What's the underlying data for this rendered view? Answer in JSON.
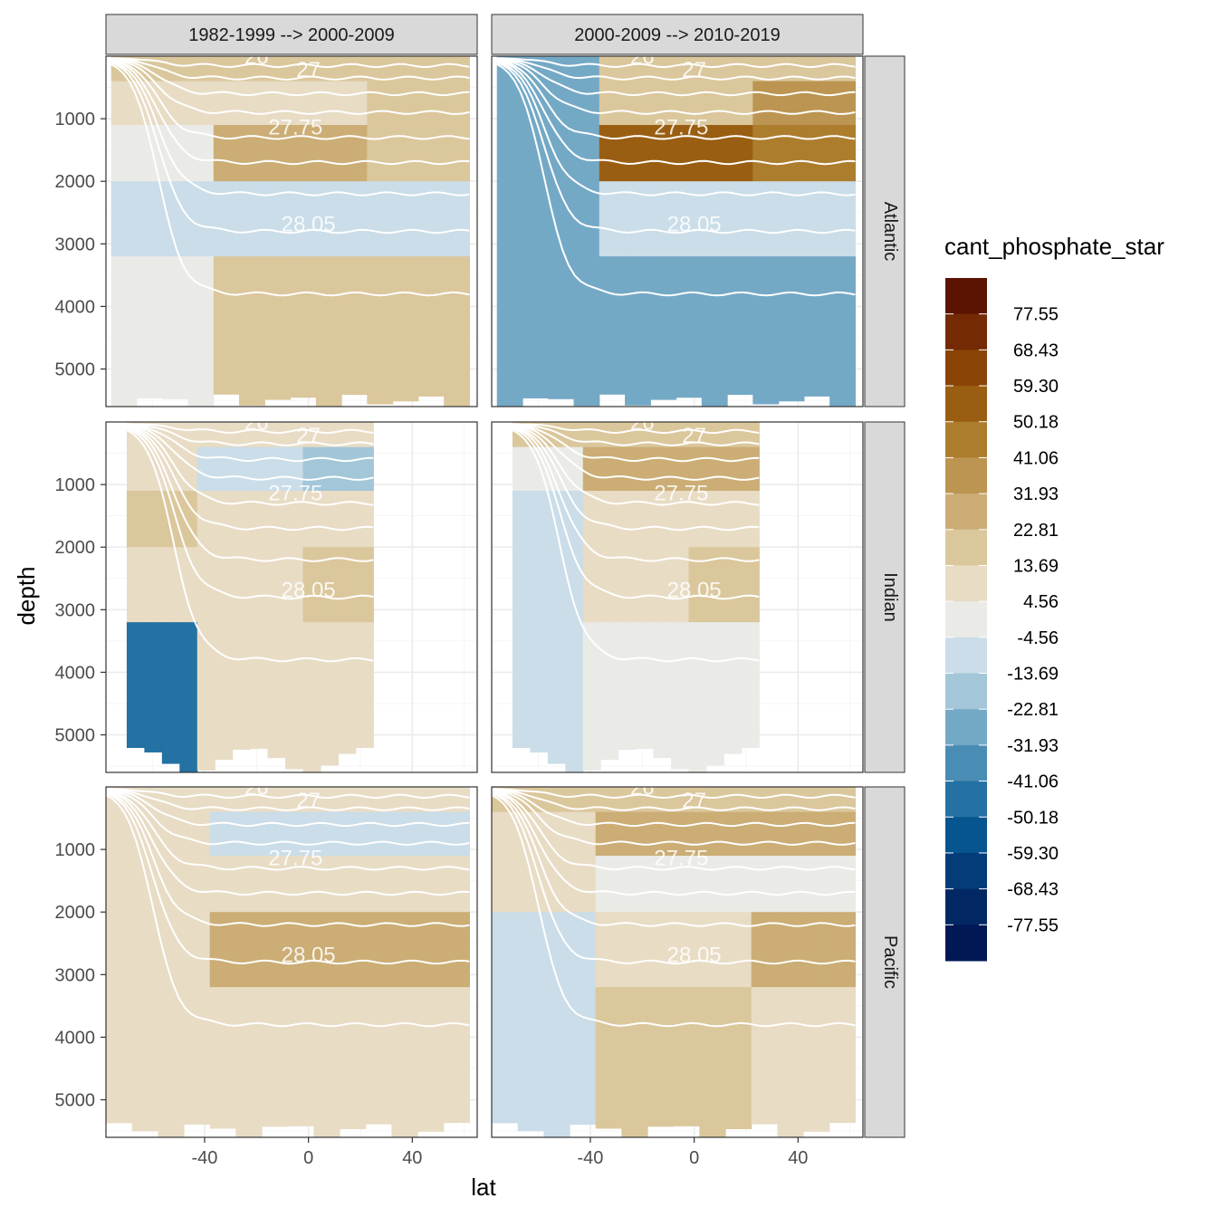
{
  "chart_data": {
    "type": "heatmap",
    "title": "",
    "xlabel": "lat",
    "ylabel": "depth",
    "xlim": [
      -78,
      65
    ],
    "ylim": [
      5600,
      0
    ],
    "x_ticks": [
      -40,
      0,
      40
    ],
    "x_tick_labels": [
      "-40",
      "0",
      "40"
    ],
    "y_ticks": [
      1000,
      2000,
      3000,
      4000,
      5000
    ],
    "y_tick_labels": [
      "1000",
      "2000",
      "3000",
      "4000",
      "5000"
    ],
    "column_facets": [
      "1982-1999 --> 2000-2009",
      "2000-2009 --> 2010-2019"
    ],
    "row_facets": [
      "Atlantic",
      "Indian",
      "Pacific"
    ],
    "legend": {
      "title": "cant_phosphate_star",
      "position": "right",
      "labels": [
        "77.55",
        "68.43",
        "59.30",
        "50.18",
        "41.06",
        "31.93",
        "22.81",
        "13.69",
        "4.56",
        "-4.56",
        "-13.69",
        "-22.81",
        "-31.93",
        "-41.06",
        "-50.18",
        "-59.30",
        "-68.43",
        "-77.55"
      ],
      "colors": [
        "#5c1402",
        "#732a05",
        "#8a4405",
        "#9a5e12",
        "#ad7d2e",
        "#bc9552",
        "#cbad75",
        "#dbc79c",
        "#e8dcc5",
        "#eaebe7",
        "#cadde8",
        "#a3c6d8",
        "#74a9c6",
        "#4a8db4",
        "#2471a3",
        "#07558e",
        "#043c79",
        "#022864",
        "#001856"
      ]
    },
    "isopycnals": {
      "labels": [
        "26",
        "27",
        "27.75",
        "28.05"
      ],
      "color": "#ffffff"
    },
    "panels": [
      {
        "ocean": "Atlantic",
        "period": "1982-1999 --> 2000-2009",
        "south_limit": -76,
        "north_limit": 62,
        "values_south": [
          15,
          5,
          0,
          -8,
          0
        ],
        "values_mid": [
          18,
          12,
          25,
          -10,
          15
        ],
        "values_north": [
          20,
          15,
          20,
          -8,
          15
        ]
      },
      {
        "ocean": "Atlantic",
        "period": "2000-2009 --> 2010-2019",
        "south_limit": -76,
        "north_limit": 62,
        "values_south": [
          -30,
          -25,
          -30,
          -30,
          -25
        ],
        "values_mid": [
          15,
          20,
          55,
          -10,
          -25
        ],
        "values_north": [
          20,
          40,
          50,
          -10,
          -30
        ]
      },
      {
        "ocean": "Indian",
        "period": "1982-1999 --> 2000-2009",
        "south_limit": -70,
        "north_limit": 25,
        "values_south": [
          10,
          10,
          15,
          10,
          -45
        ],
        "values_mid": [
          5,
          -8,
          10,
          12,
          10
        ],
        "values_north": [
          5,
          -15,
          10,
          20,
          10
        ]
      },
      {
        "ocean": "Indian",
        "period": "2000-2009 --> 2010-2019",
        "south_limit": -70,
        "north_limit": 25,
        "values_south": [
          15,
          0,
          -10,
          -10,
          -8
        ],
        "values_mid": [
          15,
          25,
          5,
          12,
          0
        ],
        "values_north": [
          15,
          25,
          5,
          20,
          0
        ]
      },
      {
        "ocean": "Pacific",
        "period": "1982-1999 --> 2000-2009",
        "south_limit": -78,
        "north_limit": 62,
        "values_south": [
          10,
          10,
          12,
          10,
          10
        ],
        "values_mid": [
          5,
          -8,
          12,
          25,
          12
        ],
        "values_north": [
          5,
          -10,
          12,
          25,
          12
        ]
      },
      {
        "ocean": "Pacific",
        "period": "2000-2009 --> 2010-2019",
        "south_limit": -78,
        "north_limit": 62,
        "values_south": [
          15,
          10,
          5,
          -8,
          -8
        ],
        "values_mid": [
          15,
          28,
          0,
          10,
          15
        ],
        "values_north": [
          15,
          28,
          0,
          28,
          12
        ]
      }
    ]
  }
}
